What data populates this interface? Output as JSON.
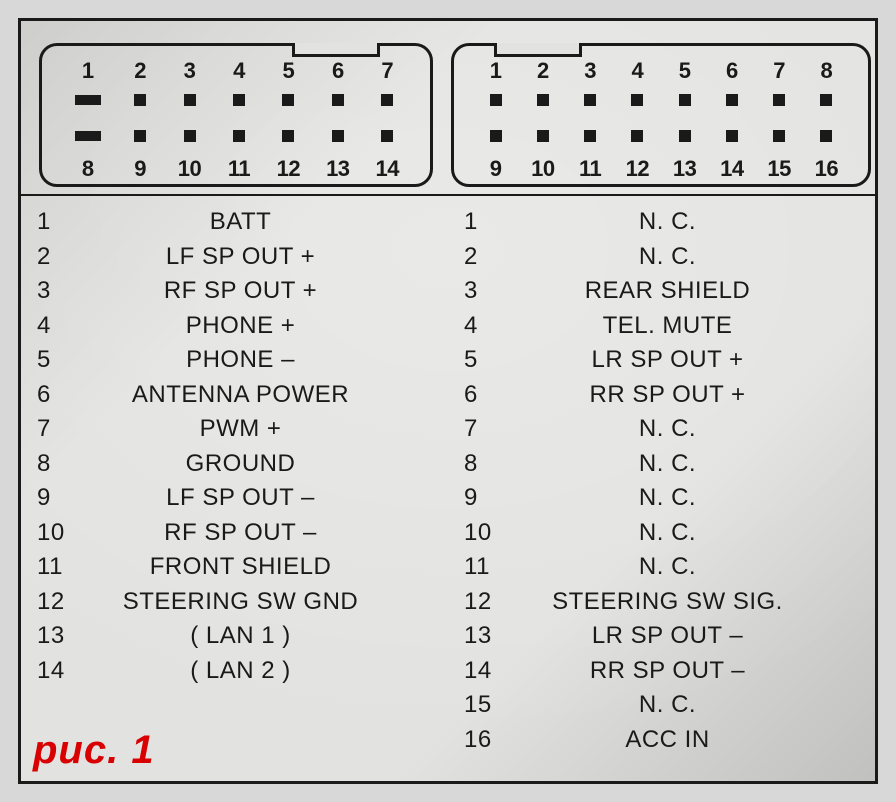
{
  "caption": "рис. 1",
  "colors": {
    "frame_border": "#1a1a1a",
    "background": "#e2e2e0",
    "page_bg": "#d8d8d8",
    "text": "#1a1a1a",
    "caption": "#d80000"
  },
  "connector_left": {
    "pin_count": 14,
    "top_numbers": [
      "1",
      "2",
      "3",
      "4",
      "5",
      "6",
      "7"
    ],
    "bottom_numbers": [
      "8",
      "9",
      "10",
      "11",
      "12",
      "13",
      "14"
    ],
    "pin1_is_slot": true,
    "pin8_is_slot": true,
    "notch_after_top_pin": 5
  },
  "connector_right": {
    "pin_count": 16,
    "top_numbers": [
      "1",
      "2",
      "3",
      "4",
      "5",
      "6",
      "7",
      "8"
    ],
    "bottom_numbers": [
      "9",
      "10",
      "11",
      "12",
      "13",
      "14",
      "15",
      "16"
    ],
    "notch_after_top_pin": 2
  },
  "pinout_left": [
    {
      "n": "1",
      "label": "BATT"
    },
    {
      "n": "2",
      "label": "LF SP OUT +"
    },
    {
      "n": "3",
      "label": "RF SP OUT +"
    },
    {
      "n": "4",
      "label": "PHONE +"
    },
    {
      "n": "5",
      "label": "PHONE –"
    },
    {
      "n": "6",
      "label": "ANTENNA POWER"
    },
    {
      "n": "7",
      "label": "PWM +"
    },
    {
      "n": "8",
      "label": "GROUND"
    },
    {
      "n": "9",
      "label": "LF SP OUT –"
    },
    {
      "n": "10",
      "label": "RF SP OUT –"
    },
    {
      "n": "11",
      "label": "FRONT SHIELD"
    },
    {
      "n": "12",
      "label": "STEERING SW GND"
    },
    {
      "n": "13",
      "label": "( LAN 1 )"
    },
    {
      "n": "14",
      "label": "( LAN 2 )"
    }
  ],
  "pinout_right": [
    {
      "n": "1",
      "label": "N. C."
    },
    {
      "n": "2",
      "label": "N. C."
    },
    {
      "n": "3",
      "label": "REAR SHIELD"
    },
    {
      "n": "4",
      "label": "TEL. MUTE"
    },
    {
      "n": "5",
      "label": "LR SP OUT +"
    },
    {
      "n": "6",
      "label": "RR SP OUT +"
    },
    {
      "n": "7",
      "label": "N. C."
    },
    {
      "n": "8",
      "label": "N. C."
    },
    {
      "n": "9",
      "label": "N. C."
    },
    {
      "n": "10",
      "label": "N. C."
    },
    {
      "n": "11",
      "label": "N. C."
    },
    {
      "n": "12",
      "label": "STEERING SW SIG."
    },
    {
      "n": "13",
      "label": "LR SP OUT –"
    },
    {
      "n": "14",
      "label": "RR SP OUT –"
    },
    {
      "n": "15",
      "label": "N. C."
    },
    {
      "n": "16",
      "label": "ACC IN"
    }
  ]
}
